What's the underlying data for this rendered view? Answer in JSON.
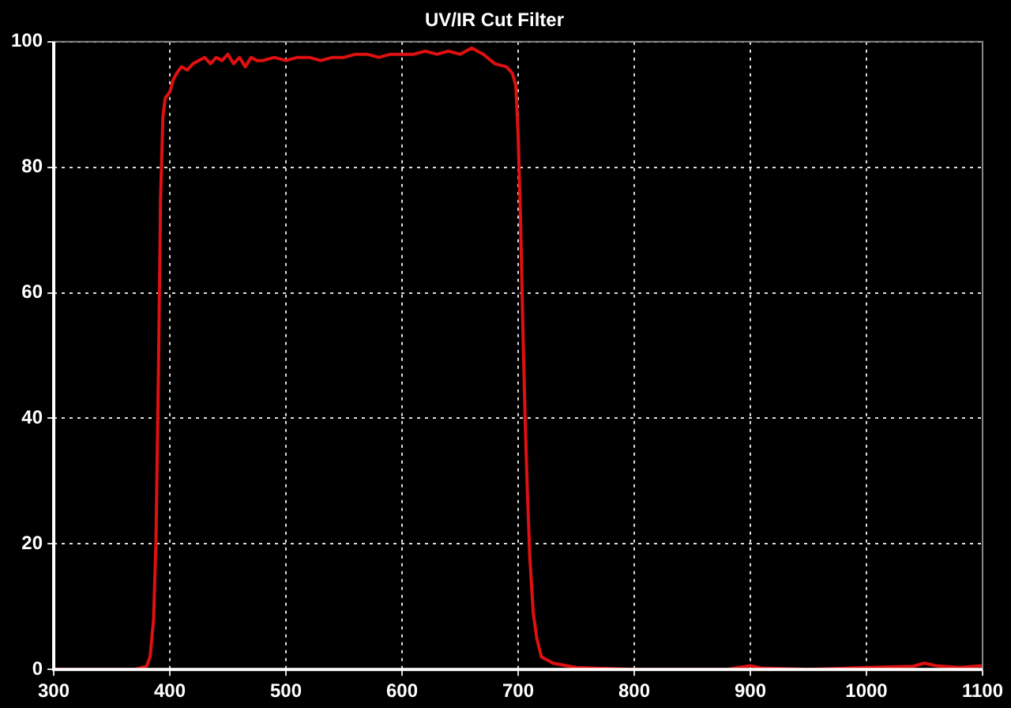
{
  "chart_data": {
    "type": "line",
    "title": "UV/IR Cut Filter",
    "series": [
      {
        "color": "#e01010",
        "x": [
          300,
          370,
          380,
          383,
          386,
          388,
          390,
          392,
          394,
          396,
          398,
          400,
          403,
          406,
          410,
          415,
          420,
          425,
          430,
          435,
          440,
          445,
          450,
          455,
          460,
          465,
          470,
          475,
          480,
          490,
          500,
          510,
          520,
          530,
          540,
          550,
          560,
          570,
          580,
          590,
          600,
          610,
          620,
          630,
          640,
          650,
          660,
          665,
          670,
          680,
          690,
          695,
          698,
          700,
          702,
          704,
          706,
          708,
          710,
          713,
          716,
          720,
          730,
          750,
          800,
          850,
          880,
          890,
          900,
          910,
          950,
          1000,
          1040,
          1050,
          1060,
          1080,
          1100
        ],
        "values": [
          0,
          0,
          0.5,
          2,
          8,
          20,
          45,
          75,
          88,
          91,
          91.5,
          92,
          94,
          95,
          96,
          95.5,
          96.5,
          97,
          97.5,
          96.5,
          97.5,
          97,
          98,
          96.5,
          97.5,
          96,
          97.5,
          97,
          97,
          97.5,
          97,
          97.5,
          97.5,
          97,
          97.5,
          97.5,
          98,
          98,
          97.5,
          98,
          98,
          98,
          98.5,
          98,
          98.5,
          98,
          99,
          98.5,
          98,
          96.5,
          96,
          95,
          93,
          85,
          72,
          55,
          40,
          28,
          18,
          9,
          5,
          2,
          1,
          0.3,
          0,
          0,
          0,
          0.3,
          0.6,
          0.2,
          0,
          0.3,
          0.5,
          1,
          0.6,
          0.3,
          0.6
        ]
      }
    ],
    "xlim": [
      300,
      1100
    ],
    "xticks": [
      300,
      400,
      500,
      600,
      700,
      800,
      900,
      1000,
      1100
    ],
    "ylim": [
      0,
      100
    ],
    "yticks": [
      0,
      20,
      40,
      60,
      80,
      100
    ],
    "grid": true,
    "line_style": "solid",
    "marker": "none"
  }
}
